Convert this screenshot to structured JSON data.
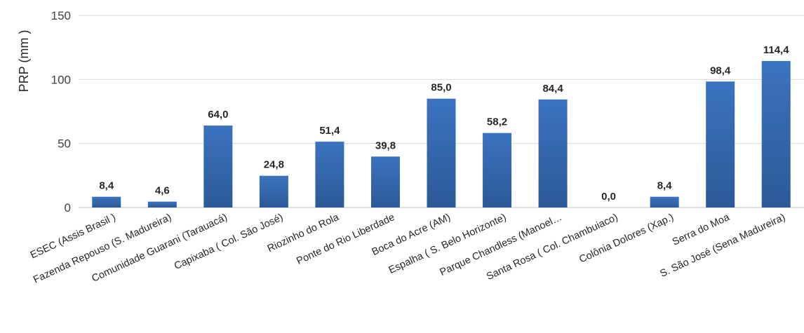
{
  "chart_data": {
    "type": "bar",
    "title": "",
    "xlabel": "",
    "ylabel": "PRP (mm )",
    "ylim": [
      0,
      150
    ],
    "yticks": [
      0,
      50,
      100,
      150
    ],
    "grid": true,
    "legend": "none",
    "bar_color": "#3b73bf",
    "bar_color_dark": "#2c5a97",
    "categories": [
      "ESEC (Assis Brasil )",
      "Fazenda Repouso (S. Madureira)",
      "Comunidade Guarani (Tarauacá)",
      "Capixaba ( Col. São José)",
      "Riozinho do Rola",
      "Ponte do Rio Liberdade",
      "Boca do Acre (AM)",
      "Espalha ( S. Belo Horizonte)",
      "Parque Chandless (Manoel…",
      "Santa Rosa ( Col. Chambuiaco)",
      "Colônia Dolores (Xap.)",
      "Serra do Moa",
      "S. São José (Sena Madureira)"
    ],
    "values": [
      8.4,
      4.6,
      64.0,
      24.8,
      51.4,
      39.8,
      85.0,
      58.2,
      84.4,
      0.0,
      8.4,
      98.4,
      114.4
    ],
    "data_labels": [
      "8,4",
      "4,6",
      "64,0",
      "24,8",
      "51,4",
      "39,8",
      "85,0",
      "58,2",
      "84,4",
      "0,0",
      "8,4",
      "98,4",
      "114,4"
    ]
  }
}
